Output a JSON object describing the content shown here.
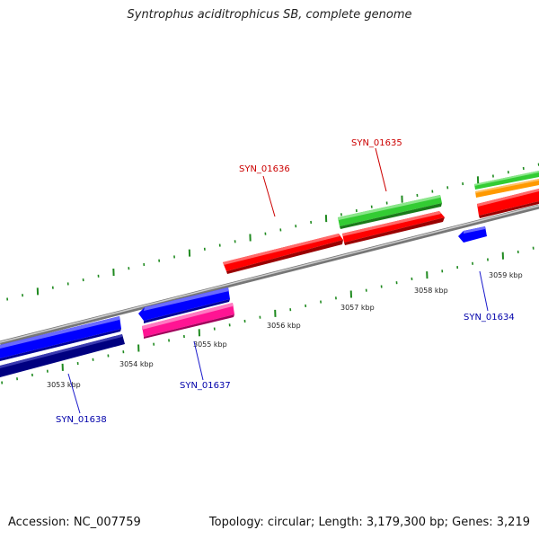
{
  "title": "Syntrophus aciditrophicus SB, complete genome",
  "accession": "Accession: NC_007759",
  "summary": "Topology: circular; Length: 3,179,300 bp; Genes: 3,219",
  "colors": {
    "backbone": "#8c8c8c",
    "tick": "#1f8a1f",
    "forward_label": "#cc0000",
    "reverse_label": "#0000aa",
    "label_line_red": "#cc0000",
    "label_line_blue": "#1a1acc"
  },
  "tick_labels": [
    "3053 kbp",
    "3054 kbp",
    "3055 kbp",
    "3056 kbp",
    "3057 kbp",
    "3058 kbp",
    "3059 kbp"
  ],
  "gene_labels": [
    {
      "name": "SYN_01636",
      "strand": "forward"
    },
    {
      "name": "SYN_01635",
      "strand": "forward"
    },
    {
      "name": "SYN_01634",
      "strand": "reverse"
    },
    {
      "name": "SYN_01637",
      "strand": "reverse"
    },
    {
      "name": "SYN_01638",
      "strand": "reverse"
    }
  ],
  "feature_colors": {
    "red": "#ff0000",
    "green": "#33cc33",
    "orange": "#ff9900",
    "blue": "#0000ff",
    "navy": "#000080",
    "magenta": "#ff1493"
  }
}
